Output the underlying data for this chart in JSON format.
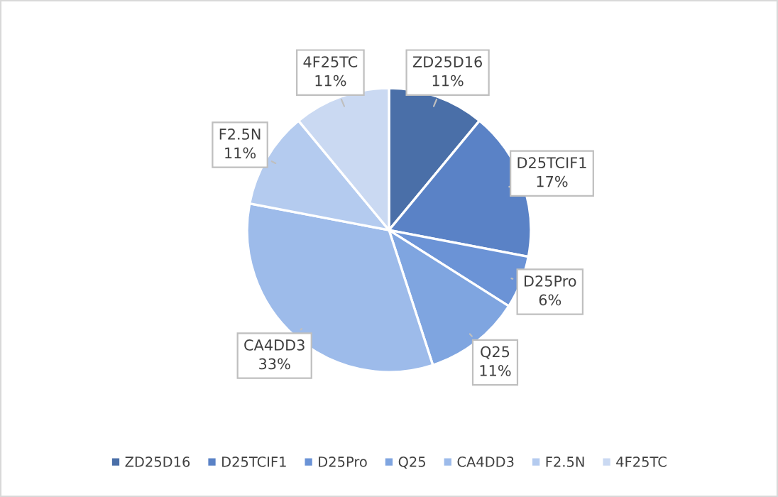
{
  "chart_data": {
    "type": "pie",
    "categories": [
      "ZD25D16",
      "D25TCIF1",
      "D25Pro",
      "Q25",
      "CA4DD3",
      "F2.5N",
      "4F25TC"
    ],
    "values": [
      11,
      17,
      6,
      11,
      33,
      11,
      11
    ],
    "value_labels": [
      "11%",
      "17%",
      "6%",
      "11%",
      "33%",
      "11%",
      "11%"
    ],
    "colors": [
      "#4a6fa8",
      "#5a82c6",
      "#6b93d6",
      "#7fa5e0",
      "#9dbbea",
      "#b4cbef",
      "#cad9f2"
    ],
    "legend": "bottom"
  }
}
